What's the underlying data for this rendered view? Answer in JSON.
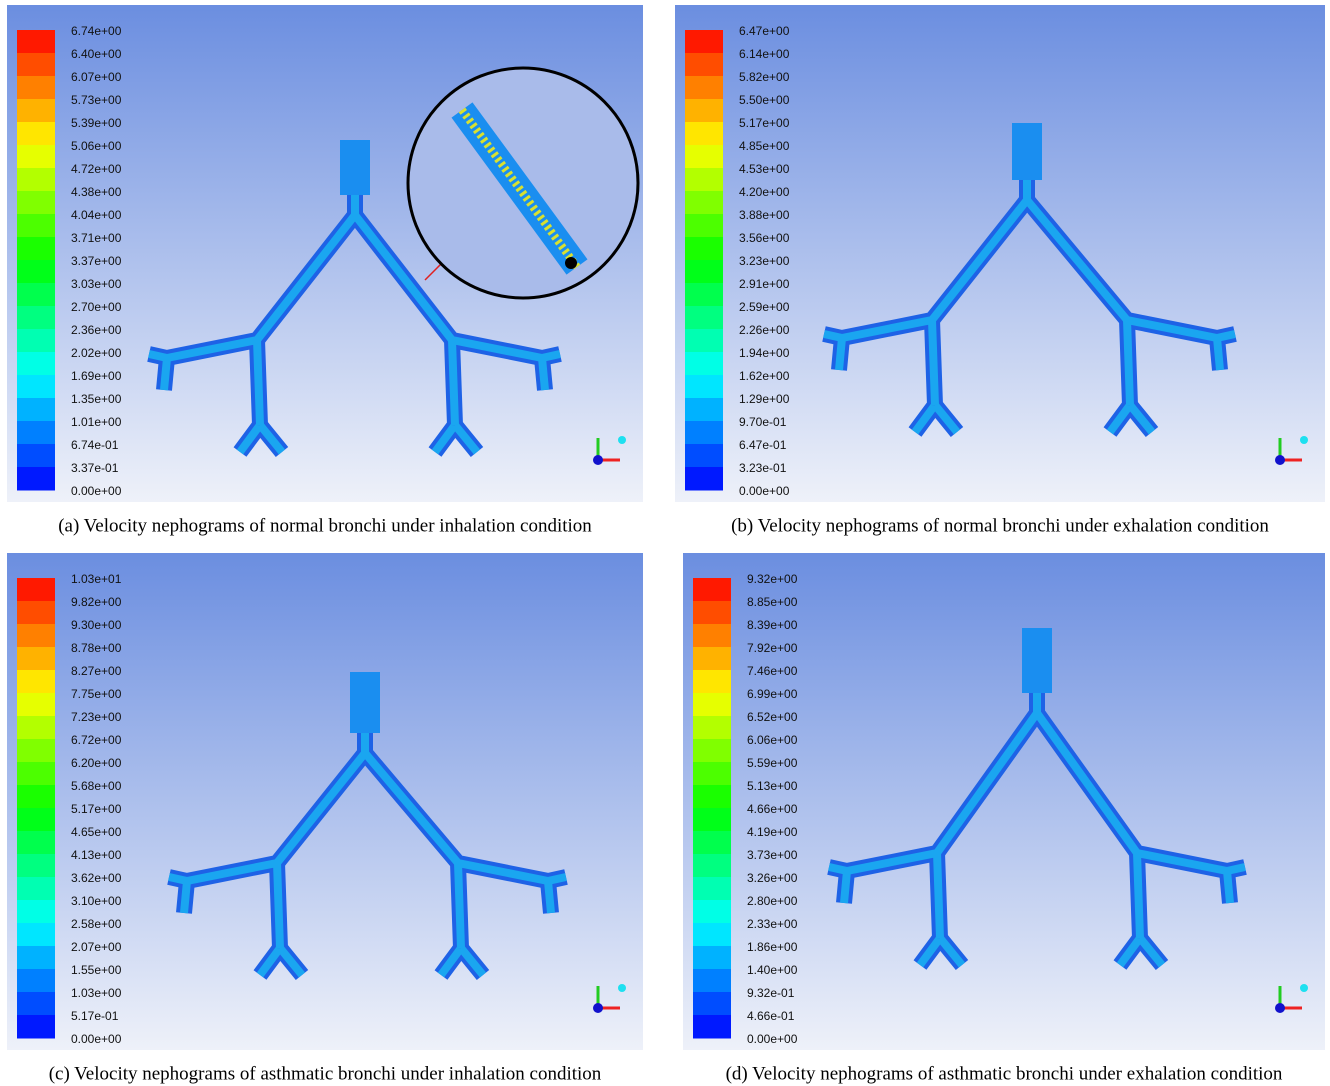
{
  "panels": [
    {
      "caption": "(a)  Velocity nephograms of normal bronchi under inhalation condition",
      "colorbar": [
        "6.74e+00",
        "6.40e+00",
        "6.07e+00",
        "5.73e+00",
        "5.39e+00",
        "5.06e+00",
        "4.72e+00",
        "4.38e+00",
        "4.04e+00",
        "3.71e+00",
        "3.37e+00",
        "3.03e+00",
        "2.70e+00",
        "2.36e+00",
        "2.02e+00",
        "1.69e+00",
        "1.35e+00",
        "1.01e+00",
        "6.74e-01",
        "3.37e-01",
        "0.00e+00"
      ]
    },
    {
      "caption": "(b)  Velocity nephograms of normal bronchi under exhalation condition",
      "colorbar": [
        "6.47e+00",
        "6.14e+00",
        "5.82e+00",
        "5.50e+00",
        "5.17e+00",
        "4.85e+00",
        "4.53e+00",
        "4.20e+00",
        "3.88e+00",
        "3.56e+00",
        "3.23e+00",
        "2.91e+00",
        "2.59e+00",
        "2.26e+00",
        "1.94e+00",
        "1.62e+00",
        "1.29e+00",
        "9.70e-01",
        "6.47e-01",
        "3.23e-01",
        "0.00e+00"
      ]
    },
    {
      "caption": "(c)  Velocity nephograms of asthmatic bronchi under inhalation condition",
      "colorbar": [
        "1.03e+01",
        "9.82e+00",
        "9.30e+00",
        "8.78e+00",
        "8.27e+00",
        "7.75e+00",
        "7.23e+00",
        "6.72e+00",
        "6.20e+00",
        "5.68e+00",
        "5.17e+00",
        "4.65e+00",
        "4.13e+00",
        "3.62e+00",
        "3.10e+00",
        "2.58e+00",
        "2.07e+00",
        "1.55e+00",
        "1.03e+00",
        "5.17e-01",
        "0.00e+00"
      ]
    },
    {
      "caption": "(d)  Velocity nephograms of asthmatic bronchi under exhalation condition",
      "colorbar": [
        "9.32e+00",
        "8.85e+00",
        "8.39e+00",
        "7.92e+00",
        "7.46e+00",
        "6.99e+00",
        "6.52e+00",
        "6.06e+00",
        "5.59e+00",
        "5.13e+00",
        "4.66e+00",
        "4.19e+00",
        "3.73e+00",
        "3.26e+00",
        "2.80e+00",
        "2.33e+00",
        "1.86e+00",
        "1.40e+00",
        "9.32e-01",
        "4.66e-01",
        "0.00e+00"
      ]
    }
  ]
}
